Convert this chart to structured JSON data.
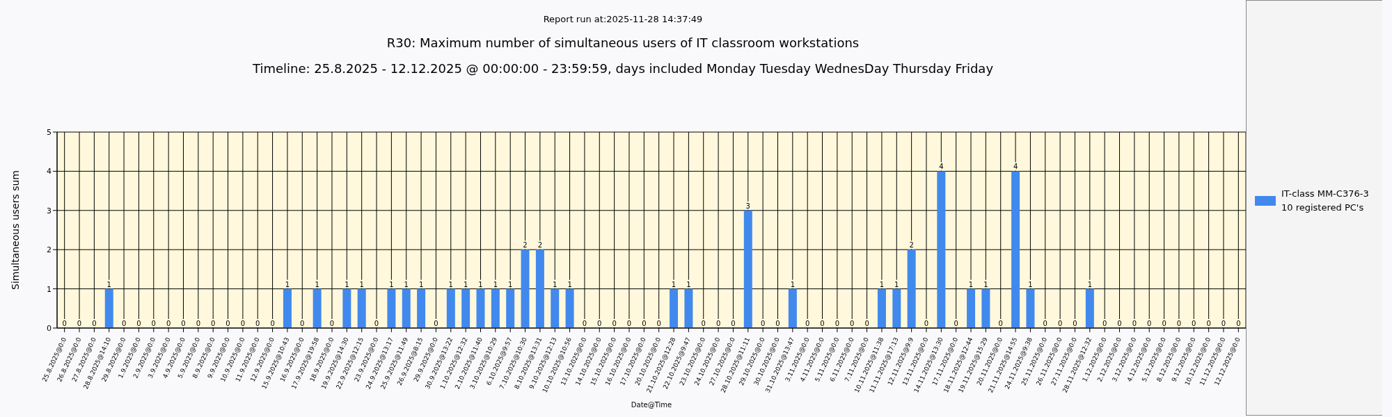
{
  "chart_data": {
    "type": "bar",
    "title": "R30: Maximum number of simultaneous users of IT classroom workstations",
    "subtitle": "Timeline: 25.8.2025  - 12.12.2025  @  00:00:00 -  23:59:59, days included Monday Tuesday WednesDay Thursday Friday",
    "annotations": [
      "Report run at:2025-11-28 14:37:49"
    ],
    "xlabel": "Date@Time",
    "ylabel": "Simultaneous users sum",
    "categories": [
      "25.8.2025@0:0",
      "26.8.2025@0:0",
      "27.8.2025@0:0",
      "28.8.2025@14:10",
      "29.8.2025@0:0",
      "1.9.2025@0:0",
      "2.9.2025@0:0",
      "3.9.2025@0:0",
      "4.9.2025@0:0",
      "5.9.2025@0:0",
      "8.9.2025@0:0",
      "9.9.2025@0:0",
      "10.9.2025@0:0",
      "11.9.2025@0:0",
      "12.9.2025@0:0",
      "15.9.2025@10:43",
      "16.9.2025@0:0",
      "17.9.2025@19:58",
      "18.9.2025@0:0",
      "19.9.2025@14:30",
      "22.9.2025@12:15",
      "23.9.2025@0:0",
      "24.9.2025@13:17",
      "25.9.2025@11:49",
      "26.9.2025@8:15",
      "29.9.2025@0:0",
      "30.9.2025@13:22",
      "1.10.2025@12:32",
      "2.10.2025@11:40",
      "3.10.2025@10:29",
      "6.10.2025@9:57",
      "7.10.2025@10:30",
      "8.10.2025@13:31",
      "9.10.2025@12:13",
      "10.10.2025@10:56",
      "13.10.2025@0:0",
      "14.10.2025@0:0",
      "15.10.2025@0:0",
      "16.10.2025@0:0",
      "17.10.2025@0:0",
      "20.10.2025@0:0",
      "21.10.2025@12:28",
      "22.10.2025@9:47",
      "23.10.2025@0:0",
      "24.10.2025@0:0",
      "27.10.2025@0:0",
      "28.10.2025@11:11",
      "29.10.2025@0:0",
      "30.10.2025@0:0",
      "31.10.2025@13:47",
      "3.11.2025@0:0",
      "4.11.2025@0:0",
      "5.11.2025@0:0",
      "6.11.2025@0:0",
      "7.11.2025@0:0",
      "10.11.2025@11:38",
      "11.11.2025@17:13",
      "12.11.2025@9:9",
      "13.11.2025@0:0",
      "14.11.2025@13:30",
      "17.11.2025@0:0",
      "18.11.2025@12:44",
      "19.11.2025@15:29",
      "20.11.2025@0:0",
      "21.11.2025@14:55",
      "24.11.2025@9:38",
      "25.11.2025@0:0",
      "26.11.2025@0:0",
      "27.11.2025@0:0",
      "28.11.2025@12:32",
      "1.12.2025@0:0",
      "2.12.2025@0:0",
      "3.12.2025@0:0",
      "4.12.2025@0:0",
      "5.12.2025@0:0",
      "8.12.2025@0:0",
      "9.12.2025@0:0",
      "10.12.2025@0:0",
      "11.12.2025@0:0",
      "12.12.2025@0:0"
    ],
    "series": [
      {
        "name": "IT-class MM-C376-3 10 registered PC's",
        "color": "#4189ed",
        "values": [
          0,
          0,
          0,
          1,
          0,
          0,
          0,
          0,
          0,
          0,
          0,
          0,
          0,
          0,
          0,
          1,
          0,
          1,
          0,
          1,
          1,
          0,
          1,
          1,
          1,
          0,
          1,
          1,
          1,
          1,
          1,
          2,
          2,
          1,
          1,
          0,
          0,
          0,
          0,
          0,
          0,
          1,
          1,
          0,
          0,
          0,
          3,
          0,
          0,
          1,
          0,
          0,
          0,
          0,
          0,
          1,
          1,
          2,
          0,
          4,
          0,
          1,
          1,
          0,
          4,
          1,
          0,
          0,
          0,
          1,
          0,
          0,
          0,
          0,
          0,
          0,
          0,
          0,
          0,
          0
        ]
      }
    ],
    "ylim": [
      0,
      5
    ],
    "yticks": [
      0,
      1,
      2,
      3,
      4,
      5
    ],
    "grid": true,
    "legend": "right",
    "data_labels": true
  }
}
